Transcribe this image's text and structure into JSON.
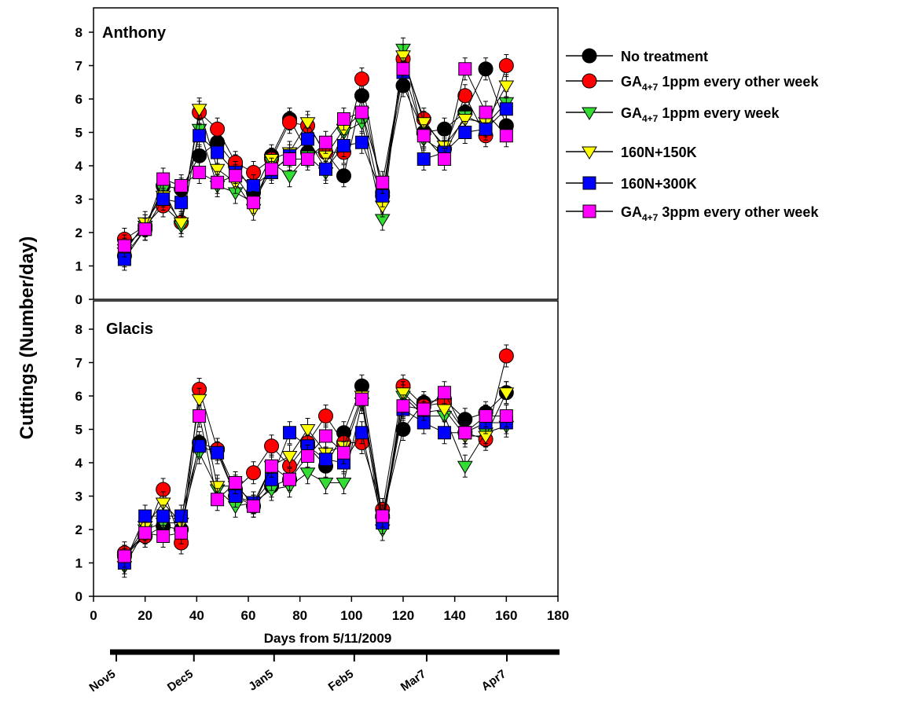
{
  "chart_data": {
    "type": "line",
    "ylabel": "Cuttings  (Number/day)",
    "xlabel": "Days from 5/11/2009",
    "x_ticks": [
      0,
      20,
      40,
      60,
      80,
      100,
      120,
      140,
      160,
      180
    ],
    "xlim": [
      0,
      180
    ],
    "y_ticks": [
      0,
      1,
      2,
      3,
      4,
      5,
      6,
      7,
      8
    ],
    "ylim": [
      0,
      9
    ],
    "x": [
      12,
      20,
      27,
      34,
      41,
      48,
      55,
      62,
      69,
      76,
      83,
      90,
      97,
      104,
      112,
      120,
      128,
      136,
      144,
      152,
      160
    ],
    "legend": {
      "position": "right",
      "entries": [
        {
          "key": "none",
          "label": "No treatment",
          "color": "#000000",
          "marker": "circle"
        },
        {
          "key": "ga1eow",
          "label_main": "GA",
          "label_sub": "4+7",
          "label_rest": " 1ppm every other week",
          "color": "#ff0000",
          "marker": "circle"
        },
        {
          "key": "ga1ew",
          "label_main": "GA",
          "label_sub": "4+7",
          "label_rest": " 1ppm every week",
          "color": "#33dd33",
          "marker": "triangle-down"
        },
        {
          "key": "n150",
          "label": "160N+150K",
          "color": "#ffff00",
          "marker": "triangle-down"
        },
        {
          "key": "n300",
          "label": "160N+300K",
          "color": "#0000ff",
          "marker": "square"
        },
        {
          "key": "ga3eow",
          "label_main": "GA",
          "label_sub": "4+7",
          "label_rest": " 3ppm every other week",
          "color": "#ff00ff",
          "marker": "square"
        }
      ]
    },
    "panels": [
      {
        "title": "Anthony",
        "series": [
          {
            "key": "none",
            "values": [
              1.3,
              2.1,
              3.4,
              3.3,
              4.3,
              4.7,
              4.0,
              3.2,
              4.3,
              5.4,
              4.4,
              4.4,
              3.7,
              6.1,
              3.2,
              6.4,
              5.0,
              5.1,
              5.6,
              6.9,
              5.2
            ]
          },
          {
            "key": "ga1eow",
            "values": [
              1.8,
              2.2,
              2.8,
              2.3,
              5.6,
              5.1,
              4.1,
              3.8,
              4.2,
              5.3,
              5.2,
              4.4,
              4.4,
              6.6,
              3.1,
              7.2,
              5.4,
              4.5,
              6.1,
              4.9,
              7.0
            ]
          },
          {
            "key": "ga1ew",
            "values": [
              1.5,
              2.2,
              3.3,
              2.2,
              5.1,
              3.4,
              3.2,
              2.9,
              4.1,
              3.7,
              4.3,
              3.8,
              5.0,
              5.3,
              2.4,
              7.5,
              4.8,
              4.4,
              5.5,
              5.2,
              5.9
            ]
          },
          {
            "key": "n150",
            "values": [
              1.4,
              2.3,
              3.1,
              2.3,
              5.7,
              3.9,
              3.5,
              2.7,
              4.2,
              4.4,
              5.3,
              4.3,
              5.1,
              5.6,
              2.8,
              7.3,
              5.3,
              4.6,
              5.4,
              5.3,
              6.4
            ]
          },
          {
            "key": "n300",
            "values": [
              1.2,
              2.1,
              3.0,
              2.9,
              4.9,
              4.4,
              3.8,
              3.4,
              3.8,
              4.3,
              4.8,
              3.9,
              4.6,
              4.7,
              3.1,
              6.8,
              4.2,
              4.4,
              5.0,
              5.1,
              5.7
            ]
          },
          {
            "key": "ga3eow",
            "values": [
              1.6,
              2.1,
              3.6,
              3.4,
              3.8,
              3.5,
              3.7,
              2.9,
              3.9,
              4.2,
              4.2,
              4.7,
              5.4,
              5.6,
              3.5,
              6.9,
              4.9,
              4.2,
              6.9,
              5.6,
              4.9
            ]
          }
        ]
      },
      {
        "title": "Glacis",
        "series": [
          {
            "key": "none",
            "values": [
              1.2,
              1.8,
              2.1,
              2.0,
              4.6,
              4.4,
              3.0,
              2.7,
              3.3,
              3.5,
              4.5,
              3.9,
              4.9,
              6.3,
              2.4,
              5.0,
              5.8,
              5.9,
              5.3,
              5.5,
              6.1
            ]
          },
          {
            "key": "ga1eow",
            "values": [
              1.3,
              1.8,
              3.2,
              1.6,
              6.2,
              4.4,
              3.2,
              3.7,
              4.5,
              3.9,
              4.6,
              5.4,
              4.6,
              4.6,
              2.6,
              6.3,
              5.7,
              5.8,
              4.9,
              4.7,
              7.2
            ]
          },
          {
            "key": "ga1ew",
            "values": [
              0.9,
              2.0,
              2.2,
              2.2,
              4.3,
              3.2,
              2.7,
              2.8,
              3.2,
              3.3,
              3.7,
              3.4,
              3.4,
              5.8,
              2.0,
              6.0,
              5.4,
              5.4,
              3.9,
              4.9,
              5.1
            ]
          },
          {
            "key": "n150",
            "values": [
              1.1,
              2.1,
              2.8,
              2.2,
              5.9,
              3.3,
              3.3,
              2.8,
              3.9,
              4.2,
              5.0,
              4.3,
              4.5,
              6.0,
              2.2,
              6.1,
              5.5,
              5.6,
              4.8,
              4.8,
              6.1
            ]
          },
          {
            "key": "n300",
            "values": [
              1.0,
              2.4,
              2.4,
              2.4,
              4.5,
              4.3,
              3.0,
              2.8,
              3.5,
              4.9,
              4.5,
              4.1,
              4.0,
              4.9,
              2.2,
              5.6,
              5.2,
              4.9,
              4.9,
              5.2,
              5.2
            ]
          },
          {
            "key": "ga3eow",
            "values": [
              1.2,
              1.9,
              1.8,
              1.9,
              5.4,
              2.9,
              3.4,
              2.7,
              3.9,
              3.5,
              4.2,
              4.8,
              4.3,
              5.9,
              2.4,
              5.7,
              5.6,
              6.1,
              4.9,
              5.4,
              5.4
            ]
          }
        ]
      }
    ],
    "date_axis": {
      "labels": [
        "Nov5",
        "Dec5",
        "Jan5",
        "Feb5",
        "Mar7",
        "Apr7"
      ],
      "label_day": [
        0,
        30,
        61,
        92,
        120,
        151
      ]
    }
  }
}
